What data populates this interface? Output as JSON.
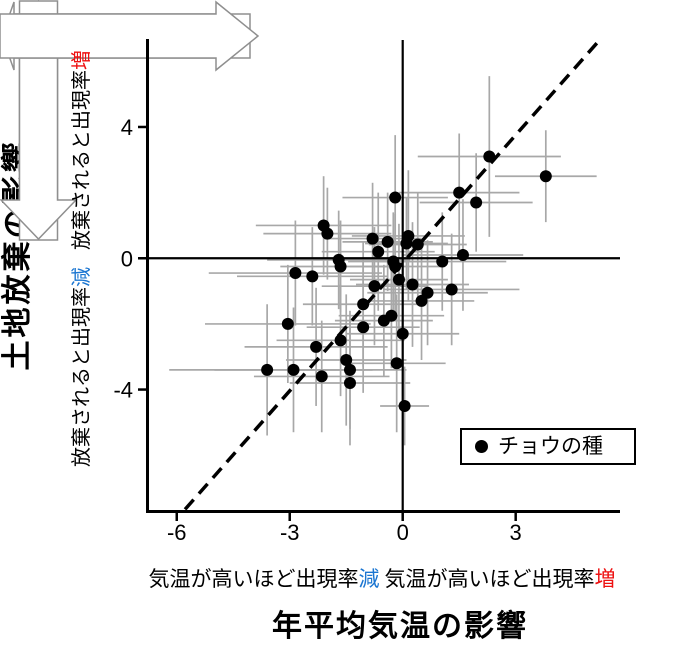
{
  "colors": {
    "increase_text": "#ee1111",
    "decrease_text": "#1a75d1",
    "error_bar": "#a8a8a8",
    "marker": "#000000",
    "arrow_outline": "#8f8f8f"
  },
  "axis_titles": {
    "x": "年平均気温の影響",
    "y": "土地放棄の影響"
  },
  "arrows": {
    "up": {
      "text": "放棄されると出現率",
      "emph": "増",
      "emph_color": "#ee1111"
    },
    "down": {
      "text": "放棄されると出現率",
      "emph": "減",
      "emph_color": "#1a75d1"
    },
    "left": {
      "text": "気温が高いほど出現率",
      "emph": "減",
      "emph_color": "#1a75d1"
    },
    "right": {
      "text": "気温が高いほど出現率",
      "emph": "増",
      "emph_color": "#ee1111"
    }
  },
  "legend": {
    "marker": "circle",
    "label": "チョウの種",
    "position": "lower right"
  },
  "chart_data": {
    "type": "scatter",
    "title": "",
    "xlabel": "年平均気温の影響",
    "ylabel": "土地放棄の影響",
    "xlim": [
      -6.79,
      5.77
    ],
    "ylim": [
      -7.7,
      6.65
    ],
    "xticks": [
      -6,
      -3,
      0,
      3
    ],
    "yticks": [
      4,
      0,
      -4
    ],
    "grid": false,
    "reference_lines": {
      "vertical_x": 0,
      "horizontal_y": 0
    },
    "trendline": {
      "style": "dashed",
      "x1": -5.78,
      "y1": -7.65,
      "x2": 5.19,
      "y2": 6.6
    },
    "point_format": [
      "x",
      "y",
      "x_err",
      "y_err"
    ],
    "series": [
      {
        "name": "チョウの種",
        "marker": "circle",
        "color": "#000000",
        "error_color": "#a8a8a8",
        "points": [
          [
            2.3,
            3.1,
            1.9,
            2.45
          ],
          [
            3.8,
            2.5,
            1.35,
            1.4
          ],
          [
            1.5,
            2.0,
            1.6,
            1.8
          ],
          [
            1.95,
            1.7,
            1.5,
            1.5
          ],
          [
            -0.2,
            1.85,
            1.4,
            1.9
          ],
          [
            -2.1,
            1.0,
            1.8,
            1.5
          ],
          [
            -2.0,
            0.75,
            1.7,
            1.4
          ],
          [
            -0.8,
            0.6,
            1.3,
            1.7
          ],
          [
            -0.4,
            0.5,
            1.2,
            1.5
          ],
          [
            0.15,
            0.68,
            1.5,
            2.0
          ],
          [
            0.1,
            0.45,
            1.1,
            1.4
          ],
          [
            0.4,
            0.42,
            1.3,
            1.6
          ],
          [
            -0.65,
            0.2,
            1.5,
            1.8
          ],
          [
            -1.7,
            -0.05,
            1.9,
            1.5
          ],
          [
            -0.25,
            -0.1,
            1.2,
            1.5
          ],
          [
            1.05,
            -0.1,
            1.7,
            1.5
          ],
          [
            1.6,
            0.1,
            1.6,
            1.7
          ],
          [
            -2.85,
            -0.45,
            2.3,
            1.6
          ],
          [
            -2.4,
            -0.55,
            2.0,
            1.5
          ],
          [
            -1.65,
            -0.25,
            1.6,
            1.4
          ],
          [
            -0.2,
            -0.25,
            1.2,
            1.6
          ],
          [
            -0.1,
            -0.65,
            1.3,
            1.7
          ],
          [
            -0.75,
            -0.85,
            1.4,
            1.8
          ],
          [
            0.26,
            -0.8,
            1.5,
            1.9
          ],
          [
            0.66,
            -1.05,
            1.6,
            1.6
          ],
          [
            1.3,
            -0.95,
            1.8,
            1.7
          ],
          [
            0.5,
            -1.3,
            1.4,
            1.8
          ],
          [
            -1.05,
            -1.4,
            1.6,
            1.9
          ],
          [
            -3.05,
            -2.0,
            2.2,
            1.8
          ],
          [
            -1.05,
            -2.1,
            1.5,
            2.0
          ],
          [
            -0.5,
            -1.9,
            1.3,
            1.7
          ],
          [
            -0.3,
            -1.75,
            1.4,
            1.6
          ],
          [
            0.0,
            -2.3,
            1.5,
            1.9
          ],
          [
            -1.65,
            -2.5,
            1.7,
            1.7
          ],
          [
            -2.3,
            -2.7,
            1.9,
            1.8
          ],
          [
            -3.6,
            -3.4,
            2.6,
            2.0
          ],
          [
            -2.9,
            -3.4,
            2.1,
            1.9
          ],
          [
            -2.15,
            -3.6,
            1.8,
            1.7
          ],
          [
            -1.5,
            -3.1,
            1.6,
            2.0
          ],
          [
            -1.4,
            -3.4,
            1.5,
            1.8
          ],
          [
            -1.4,
            -3.8,
            1.6,
            1.9
          ],
          [
            -0.16,
            -3.2,
            1.3,
            2.1
          ],
          [
            0.05,
            -4.5,
            0.65,
            1.2
          ]
        ]
      }
    ]
  }
}
